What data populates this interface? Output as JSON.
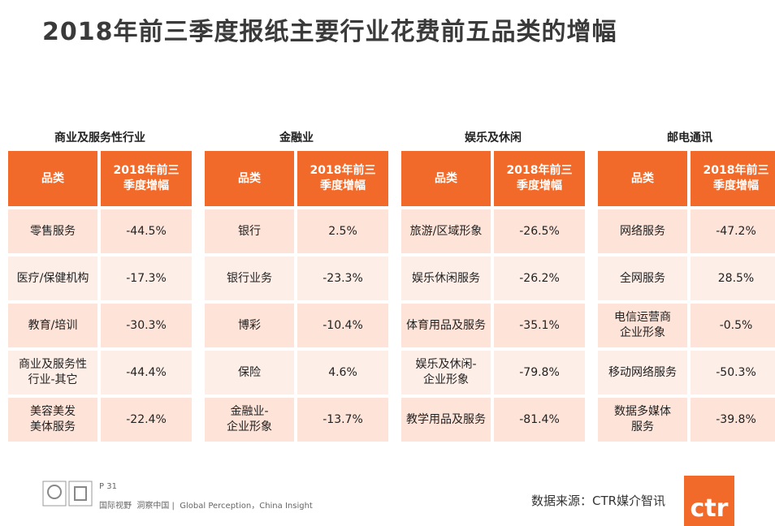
{
  "header": {
    "title": "2018年前三季度报纸主要行业花费前五品类的增幅"
  },
  "tables": [
    {
      "heading": "商业及服务性行业",
      "columns": [
        "品类",
        "2018年前三\n季度增幅"
      ],
      "rows": [
        [
          "零售服务",
          "-44.5%"
        ],
        [
          "医疗/保健机构",
          "-17.3%"
        ],
        [
          "教育/培训",
          "-30.3%"
        ],
        [
          "商业及服务性\n行业-其它",
          "-44.4%"
        ],
        [
          "美容美发\n美体服务",
          "-22.4%"
        ]
      ]
    },
    {
      "heading": "金融业",
      "columns": [
        "品类",
        "2018年前三\n季度增幅"
      ],
      "rows": [
        [
          "银行",
          "2.5%"
        ],
        [
          "银行业务",
          "-23.3%"
        ],
        [
          "博彩",
          "-10.4%"
        ],
        [
          "保险",
          "4.6%"
        ],
        [
          "金融业-\n企业形象",
          "-13.7%"
        ]
      ]
    },
    {
      "heading": "娱乐及休闲",
      "columns": [
        "品类",
        "2018年前三\n季度增幅"
      ],
      "rows": [
        [
          "旅游/区域形象",
          "-26.5%"
        ],
        [
          "娱乐休闲服务",
          "-26.2%"
        ],
        [
          "体育用品及服务",
          "-35.1%"
        ],
        [
          "娱乐及休闲-\n企业形象",
          "-79.8%"
        ],
        [
          "教学用品及服务",
          "-81.4%"
        ]
      ]
    },
    {
      "heading": "邮电通讯",
      "columns": [
        "品类",
        "2018年前三\n季度增幅"
      ],
      "rows": [
        [
          "网络服务",
          "-47.2%"
        ],
        [
          "全网服务",
          "28.5%"
        ],
        [
          "电信运营商\n企业形象",
          "-0.5%"
        ],
        [
          "移动网络服务",
          "-50.3%"
        ],
        [
          "数据多媒体\n服务",
          "-39.8%"
        ]
      ]
    }
  ],
  "footer": {
    "page": "P 31",
    "tagline": "国际视野  洞察中国 |  Global Perception，China Insight",
    "source": "数据来源：CTR媒介智讯",
    "logo": "ctr"
  }
}
